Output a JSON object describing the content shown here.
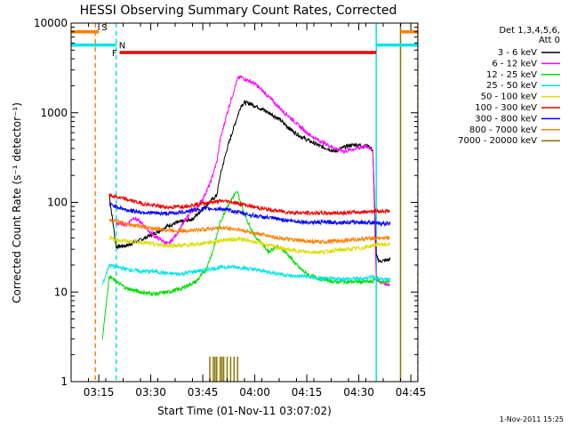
{
  "chart_data": {
    "type": "line",
    "title": "HESSI Observing Summary Count Rates, Corrected",
    "xlabel": "Start Time (01-Nov-11 03:07:02)",
    "ylabel": "Corrected Count Rate (s⁻¹ detector⁻¹)",
    "x_unit": "minutes after 03:07:02",
    "xlim": [
      0,
      100
    ],
    "ylim": [
      1,
      10000
    ],
    "yscale": "log",
    "x_tick_labels": [
      "03:15",
      "03:30",
      "03:45",
      "04:00",
      "04:15",
      "04:30",
      "04:45"
    ],
    "y_tick_labels": [
      "1",
      "10",
      "100",
      "1000",
      "10000"
    ],
    "legend_header": [
      "Det 1,3,4,5,6,",
      "Att 0"
    ],
    "legend_placement": "right",
    "footer_stamp": "1-Nov-2011 15:25",
    "series": [
      {
        "name": "3 - 6 keV",
        "color": "#000000",
        "x": [
          11,
          13,
          16,
          20,
          24,
          28,
          31,
          35,
          38,
          42,
          43,
          45,
          47,
          49,
          50,
          52,
          54,
          56,
          58,
          60,
          62,
          64,
          66,
          68,
          70,
          72,
          74,
          76,
          78,
          80,
          82,
          84,
          86,
          87,
          88,
          89,
          92
        ],
        "y": [
          120,
          32,
          33,
          38,
          45,
          55,
          60,
          65,
          85,
          120,
          200,
          400,
          700,
          1200,
          1300,
          1250,
          1150,
          1050,
          950,
          850,
          720,
          620,
          550,
          500,
          460,
          420,
          400,
          370,
          400,
          430,
          440,
          430,
          420,
          380,
          25,
          22,
          23
        ]
      },
      {
        "name": "6 - 12 keV",
        "color": "#ff00ff",
        "x": [
          13,
          15,
          16,
          18,
          20,
          22,
          24,
          26,
          28,
          30,
          32,
          34,
          36,
          38,
          40,
          42,
          43,
          45,
          47,
          48,
          49,
          51,
          53,
          55,
          57,
          59,
          61,
          63,
          65,
          67,
          69,
          71,
          73,
          75,
          77,
          79,
          81,
          83,
          85,
          87,
          88,
          89,
          92
        ],
        "y": [
          58,
          58,
          56,
          68,
          60,
          50,
          42,
          38,
          34,
          42,
          55,
          75,
          85,
          110,
          160,
          280,
          500,
          1000,
          1800,
          2400,
          2500,
          2300,
          2100,
          1800,
          1500,
          1250,
          1050,
          900,
          760,
          650,
          560,
          500,
          460,
          420,
          390,
          370,
          390,
          410,
          420,
          400,
          14,
          13,
          12
        ]
      },
      {
        "name": "12 - 25 keV",
        "color": "#00dd00",
        "x": [
          9,
          11,
          13,
          16,
          20,
          24,
          28,
          32,
          36,
          39,
          41,
          43,
          45,
          47,
          48,
          49,
          51,
          53,
          55,
          57,
          59,
          61,
          63,
          65,
          67,
          69,
          72,
          76,
          80,
          84,
          87,
          88,
          89,
          92
        ],
        "y": [
          3,
          15,
          13,
          11,
          10,
          9.5,
          10,
          11,
          13,
          18,
          30,
          60,
          90,
          120,
          130,
          95,
          60,
          42,
          35,
          28,
          32,
          30,
          25,
          20,
          17,
          15,
          14,
          13,
          13,
          13,
          13,
          15,
          13,
          13
        ]
      },
      {
        "name": "25 - 50 keV",
        "color": "#00e5e5",
        "x": [
          9,
          11,
          13,
          16,
          20,
          24,
          28,
          32,
          36,
          40,
          44,
          48,
          52,
          56,
          60,
          64,
          68,
          72,
          76,
          80,
          84,
          87,
          88,
          89,
          92
        ],
        "y": [
          12,
          20,
          19,
          18,
          17,
          17,
          16,
          16,
          17,
          18,
          19,
          19,
          18,
          17,
          16,
          15,
          15,
          14,
          14,
          14,
          14,
          15,
          14,
          14,
          14
        ]
      },
      {
        "name": "50 - 100 keV",
        "color": "#dddd00",
        "x": [
          11,
          13,
          16,
          20,
          24,
          28,
          32,
          36,
          40,
          44,
          48,
          52,
          56,
          60,
          64,
          68,
          72,
          76,
          80,
          84,
          87,
          88,
          89,
          92
        ],
        "y": [
          40,
          38,
          37,
          36,
          34,
          33,
          33,
          34,
          36,
          38,
          39,
          37,
          34,
          31,
          29,
          28,
          28,
          29,
          30,
          31,
          33,
          34,
          34,
          34
        ]
      },
      {
        "name": "100 - 300 keV",
        "color": "#ee0000",
        "x": [
          11,
          13,
          16,
          20,
          24,
          28,
          32,
          36,
          40,
          44,
          48,
          52,
          56,
          60,
          64,
          68,
          72,
          76,
          80,
          84,
          87,
          88,
          89,
          92
        ],
        "y": [
          120,
          115,
          108,
          98,
          92,
          88,
          90,
          95,
          100,
          104,
          98,
          90,
          84,
          80,
          77,
          76,
          76,
          76,
          77,
          78,
          80,
          80,
          80,
          80
        ]
      },
      {
        "name": "300 - 800 keV",
        "color": "#0000ff",
        "x": [
          11,
          13,
          16,
          20,
          24,
          28,
          32,
          36,
          40,
          44,
          48,
          52,
          56,
          60,
          64,
          68,
          72,
          76,
          80,
          84,
          87,
          88,
          89,
          92
        ],
        "y": [
          95,
          90,
          82,
          78,
          76,
          75,
          78,
          83,
          85,
          84,
          78,
          72,
          68,
          65,
          62,
          60,
          60,
          60,
          60,
          60,
          60,
          58,
          58,
          58
        ]
      },
      {
        "name": "800 - 7000 keV",
        "color": "#ff8000",
        "x": [
          11,
          13,
          16,
          20,
          24,
          28,
          32,
          36,
          40,
          44,
          48,
          52,
          56,
          60,
          64,
          68,
          72,
          76,
          80,
          84,
          87,
          88,
          89,
          92
        ],
        "y": [
          65,
          62,
          57,
          54,
          51,
          49,
          48,
          49,
          51,
          52,
          50,
          46,
          43,
          40,
          38,
          37,
          36,
          37,
          38,
          39,
          40,
          40,
          40,
          40
        ]
      },
      {
        "name": "7000 - 20000 keV",
        "color": "#8b7500",
        "x": [],
        "y": []
      }
    ],
    "spikes": {
      "series": "7000 - 20000 keV",
      "x": [
        40,
        41,
        41.5,
        42,
        43,
        43.5,
        44,
        45,
        46,
        47,
        48
      ],
      "y": [
        1.9,
        1.9,
        1.9,
        1.9,
        1.9,
        1.9,
        1.9,
        1.9,
        1.9,
        1.9,
        1.9
      ]
    },
    "flag_bars": [
      {
        "label": "S",
        "color": "#ff8000",
        "segments": [
          [
            -5,
            8
          ],
          [
            95,
            100
          ]
        ],
        "level": 8000
      },
      {
        "label": "N",
        "color": "#00e5e5",
        "segments": [
          [
            -5,
            13
          ],
          [
            88,
            100
          ]
        ],
        "level": 5700
      },
      {
        "label": "F",
        "color": "#ee0000",
        "segments": [
          [
            14,
            88
          ]
        ],
        "level": 4700
      }
    ],
    "vertical_lines": [
      {
        "x": 7,
        "color": "#ff8000",
        "dashed": true
      },
      {
        "x": 13,
        "color": "#00e5e5",
        "dashed": true
      },
      {
        "x": 88,
        "color": "#00e5e5",
        "dashed": false
      },
      {
        "x": 95,
        "color": "#8b7500",
        "dashed": false
      },
      {
        "x": 100,
        "color": "#ff8000",
        "dashed": true
      }
    ]
  }
}
